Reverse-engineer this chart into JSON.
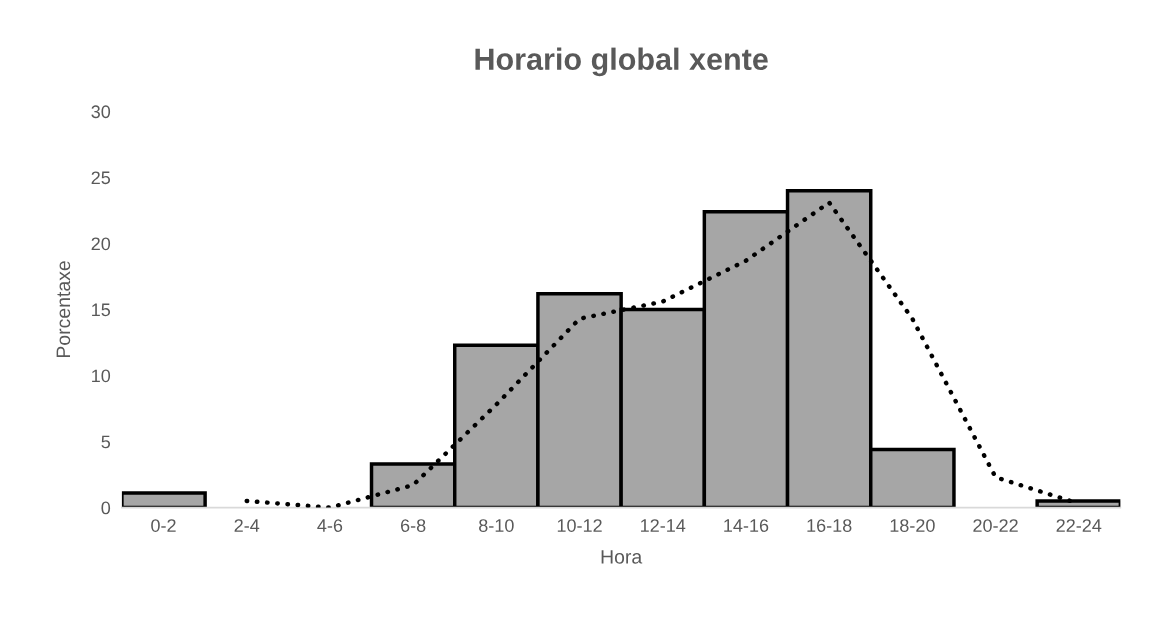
{
  "chart_data": {
    "type": "bar",
    "title": "Horario global xente",
    "xlabel": "Hora",
    "ylabel": "Porcentaxe",
    "categories": [
      "0-2",
      "2-4",
      "4-6",
      "6-8",
      "8-10",
      "10-12",
      "12-14",
      "14-16",
      "16-18",
      "18-20",
      "20-22",
      "22-24"
    ],
    "series": [
      {
        "color": "#a6a6a6",
        "values": [
          1.1,
          0,
          0,
          3.3,
          12.3,
          16.2,
          15.0,
          22.4,
          24.0,
          4.4,
          0,
          0.5
        ]
      },
      {
        "type": "line",
        "color": "#000000",
        "line_style": "dotted",
        "values": [
          null,
          0.5,
          0,
          1.7,
          7.8,
          14.3,
          15.6,
          18.7,
          23.1,
          14.3,
          2.3,
          0.3
        ]
      }
    ],
    "ylim": [
      0,
      30
    ],
    "yticks": [
      0,
      5,
      10,
      15,
      20,
      25,
      30
    ],
    "grid": false,
    "legend": false
  }
}
